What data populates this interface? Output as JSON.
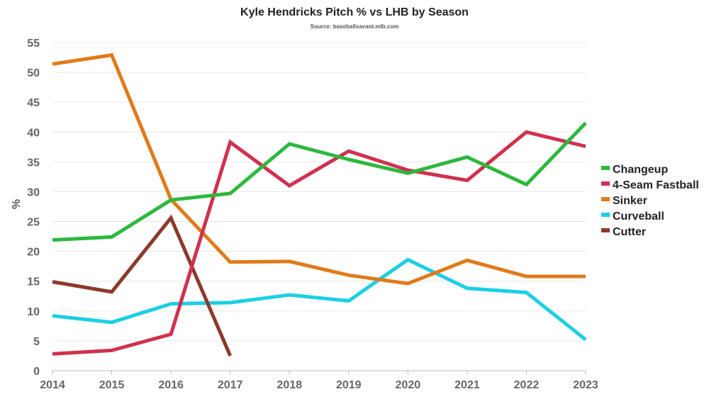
{
  "chart_data": {
    "type": "line",
    "title": "Kyle Hendricks Pitch % vs LHB by Season",
    "subtitle": "Source: baseballsavant.mlb.com",
    "xlabel": "",
    "ylabel": "%",
    "ylim": [
      0,
      55
    ],
    "yticks": [
      0,
      5,
      10,
      15,
      20,
      25,
      30,
      35,
      40,
      45,
      50,
      55
    ],
    "grid": true,
    "legend_position": "right",
    "x": [
      "2014",
      "2015",
      "2016",
      "2017",
      "2018",
      "2019",
      "2020",
      "2021",
      "2022",
      "2023"
    ],
    "series": [
      {
        "name": "Changeup",
        "color": "#2db83d",
        "values": [
          21.9,
          22.4,
          28.6,
          29.7,
          38.0,
          35.4,
          33.1,
          35.8,
          31.2,
          41.5
        ]
      },
      {
        "name": "4-Seam Fastball",
        "color": "#d0314f",
        "values": [
          2.8,
          3.4,
          6.1,
          38.3,
          31.0,
          36.8,
          33.6,
          31.9,
          40.0,
          37.6
        ]
      },
      {
        "name": "Sinker",
        "color": "#e07b19",
        "values": [
          51.4,
          52.9,
          28.7,
          18.2,
          18.3,
          16.0,
          14.6,
          18.5,
          15.8,
          15.8
        ]
      },
      {
        "name": "Curveball",
        "color": "#1ccfe5",
        "values": [
          9.2,
          8.1,
          11.2,
          11.4,
          12.7,
          11.7,
          18.6,
          13.8,
          13.1,
          5.2
        ]
      },
      {
        "name": "Cutter",
        "color": "#8b3a2a",
        "values": [
          14.9,
          13.2,
          25.6,
          2.5,
          null,
          null,
          null,
          null,
          null,
          null
        ]
      }
    ]
  }
}
